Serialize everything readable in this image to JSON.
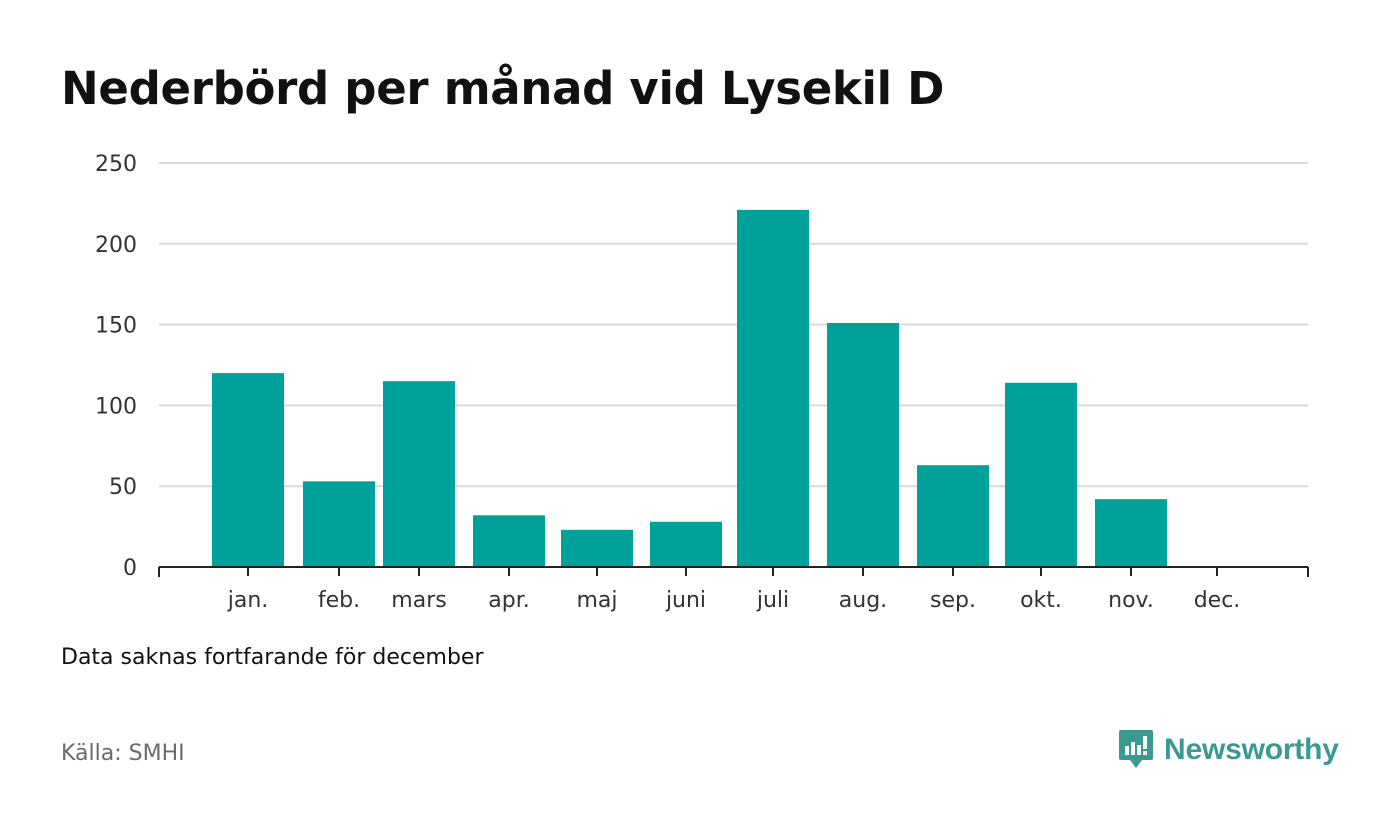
{
  "colors": {
    "bar": "#00a19a",
    "grid": "#d9d9d9",
    "axis": "#222222",
    "brand": "#3a9a93"
  },
  "chart_data": {
    "type": "bar",
    "title": "Nederbörd per månad vid Lysekil D",
    "categories": [
      "jan.",
      "feb.",
      "mars",
      "apr.",
      "maj",
      "juni",
      "juli",
      "aug.",
      "sep.",
      "okt.",
      "nov.",
      "dec."
    ],
    "values": [
      120,
      53,
      115,
      32,
      23,
      28,
      221,
      151,
      63,
      114,
      42,
      null
    ],
    "ylim": [
      0,
      250
    ],
    "yticks": [
      0,
      50,
      100,
      150,
      200,
      250
    ],
    "xlabel": "",
    "ylabel": "",
    "grid": true,
    "legend": "none"
  },
  "note": "Data saknas fortfarande för december",
  "source": "Källa: SMHI",
  "brand": {
    "name": "Newsworthy",
    "icon": "newsworthy-logo-icon"
  }
}
